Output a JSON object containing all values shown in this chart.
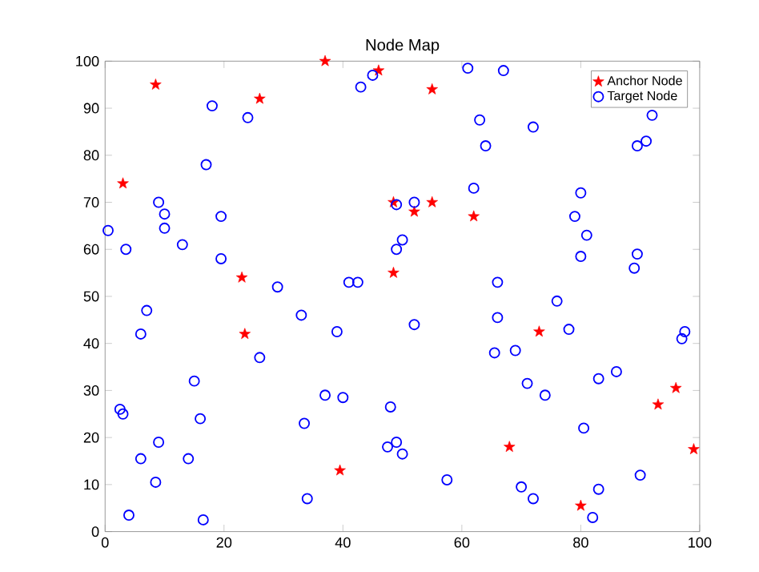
{
  "chart_data": {
    "type": "scatter",
    "title": "Node Map",
    "xlim": [
      0,
      100
    ],
    "ylim": [
      0,
      100
    ],
    "xticks": [
      0,
      20,
      40,
      60,
      80,
      100
    ],
    "yticks": [
      0,
      10,
      20,
      30,
      40,
      50,
      60,
      70,
      80,
      90,
      100
    ],
    "grid": false,
    "legend": "top right",
    "series": [
      {
        "name": "Anchor Node",
        "color": "#ff0000",
        "marker": "star",
        "x": [
          3,
          8.5,
          26,
          37,
          46,
          55,
          62,
          48.5,
          52,
          55,
          48.5,
          23,
          23.5,
          39.5,
          73,
          68,
          80,
          93,
          96,
          99
        ],
        "values": [
          74,
          95,
          92,
          100,
          98,
          94,
          67,
          70,
          68,
          70,
          55,
          54,
          42,
          13,
          42.5,
          18,
          5.5,
          27,
          30.5,
          17.5
        ]
      },
      {
        "name": "Target Node",
        "color": "#0000ff",
        "marker": "circle",
        "x": [
          0.5,
          3.5,
          7,
          9,
          10,
          10,
          13,
          19.5,
          17,
          18,
          19.5,
          24,
          6,
          2.5,
          3,
          6,
          9,
          8.5,
          4,
          14,
          15,
          16,
          16.5,
          26,
          29,
          33,
          33.5,
          34,
          37,
          39,
          40,
          41,
          42.5,
          43,
          45,
          48,
          49,
          49,
          50,
          52,
          49,
          50,
          47.5,
          52,
          57.5,
          61,
          62,
          63,
          64,
          67,
          66,
          66,
          65.5,
          69,
          70,
          71,
          72,
          72,
          74,
          76,
          78,
          79,
          80,
          80.5,
          80,
          81,
          82,
          83,
          83,
          86,
          89,
          89.5,
          90,
          89.5,
          91,
          92,
          97,
          97.5
        ],
        "values": [
          64,
          60,
          47,
          70,
          67.5,
          64.5,
          61,
          58,
          78,
          90.5,
          67,
          88,
          42,
          26,
          25,
          15.5,
          19,
          10.5,
          3.5,
          15.5,
          32,
          24,
          2.5,
          37,
          52,
          46,
          23,
          7,
          29,
          42.5,
          28.5,
          53,
          53,
          94.5,
          97,
          26.5,
          69.5,
          60,
          62,
          44,
          19,
          16.5,
          18,
          70,
          11,
          98.5,
          73,
          87.5,
          82,
          98,
          53,
          45.5,
          38,
          38.5,
          9.5,
          31.5,
          86,
          7,
          29,
          49,
          43,
          67,
          72,
          22,
          58.5,
          63,
          3,
          32.5,
          9,
          34,
          56,
          59,
          12,
          82,
          83,
          88.5,
          41,
          42.5
        ]
      }
    ]
  }
}
